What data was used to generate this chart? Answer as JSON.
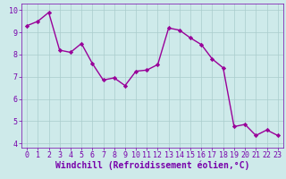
{
  "x": [
    0,
    1,
    2,
    3,
    4,
    5,
    6,
    7,
    8,
    9,
    10,
    11,
    12,
    13,
    14,
    15,
    16,
    17,
    18,
    19,
    20,
    21,
    22,
    23
  ],
  "y": [
    9.3,
    9.5,
    9.9,
    8.2,
    8.1,
    8.5,
    7.6,
    6.85,
    6.95,
    6.6,
    7.25,
    7.3,
    7.55,
    9.2,
    9.1,
    8.75,
    8.45,
    7.8,
    7.4,
    4.75,
    4.85,
    4.35,
    4.6,
    4.35
  ],
  "line_color": "#990099",
  "marker": "D",
  "marker_size": 2.2,
  "bg_color": "#ceeaea",
  "grid_color": "#aacccc",
  "xlabel": "Windchill (Refroidissement éolien,°C)",
  "ylabel": "",
  "ylim": [
    3.8,
    10.3
  ],
  "xlim": [
    -0.5,
    23.5
  ],
  "yticks": [
    4,
    5,
    6,
    7,
    8,
    9,
    10
  ],
  "xticks": [
    0,
    1,
    2,
    3,
    4,
    5,
    6,
    7,
    8,
    9,
    10,
    11,
    12,
    13,
    14,
    15,
    16,
    17,
    18,
    19,
    20,
    21,
    22,
    23
  ],
  "tick_label_fontsize": 6.0,
  "xlabel_fontsize": 7.0,
  "spine_color": "#7700aa",
  "line_width": 1.0
}
